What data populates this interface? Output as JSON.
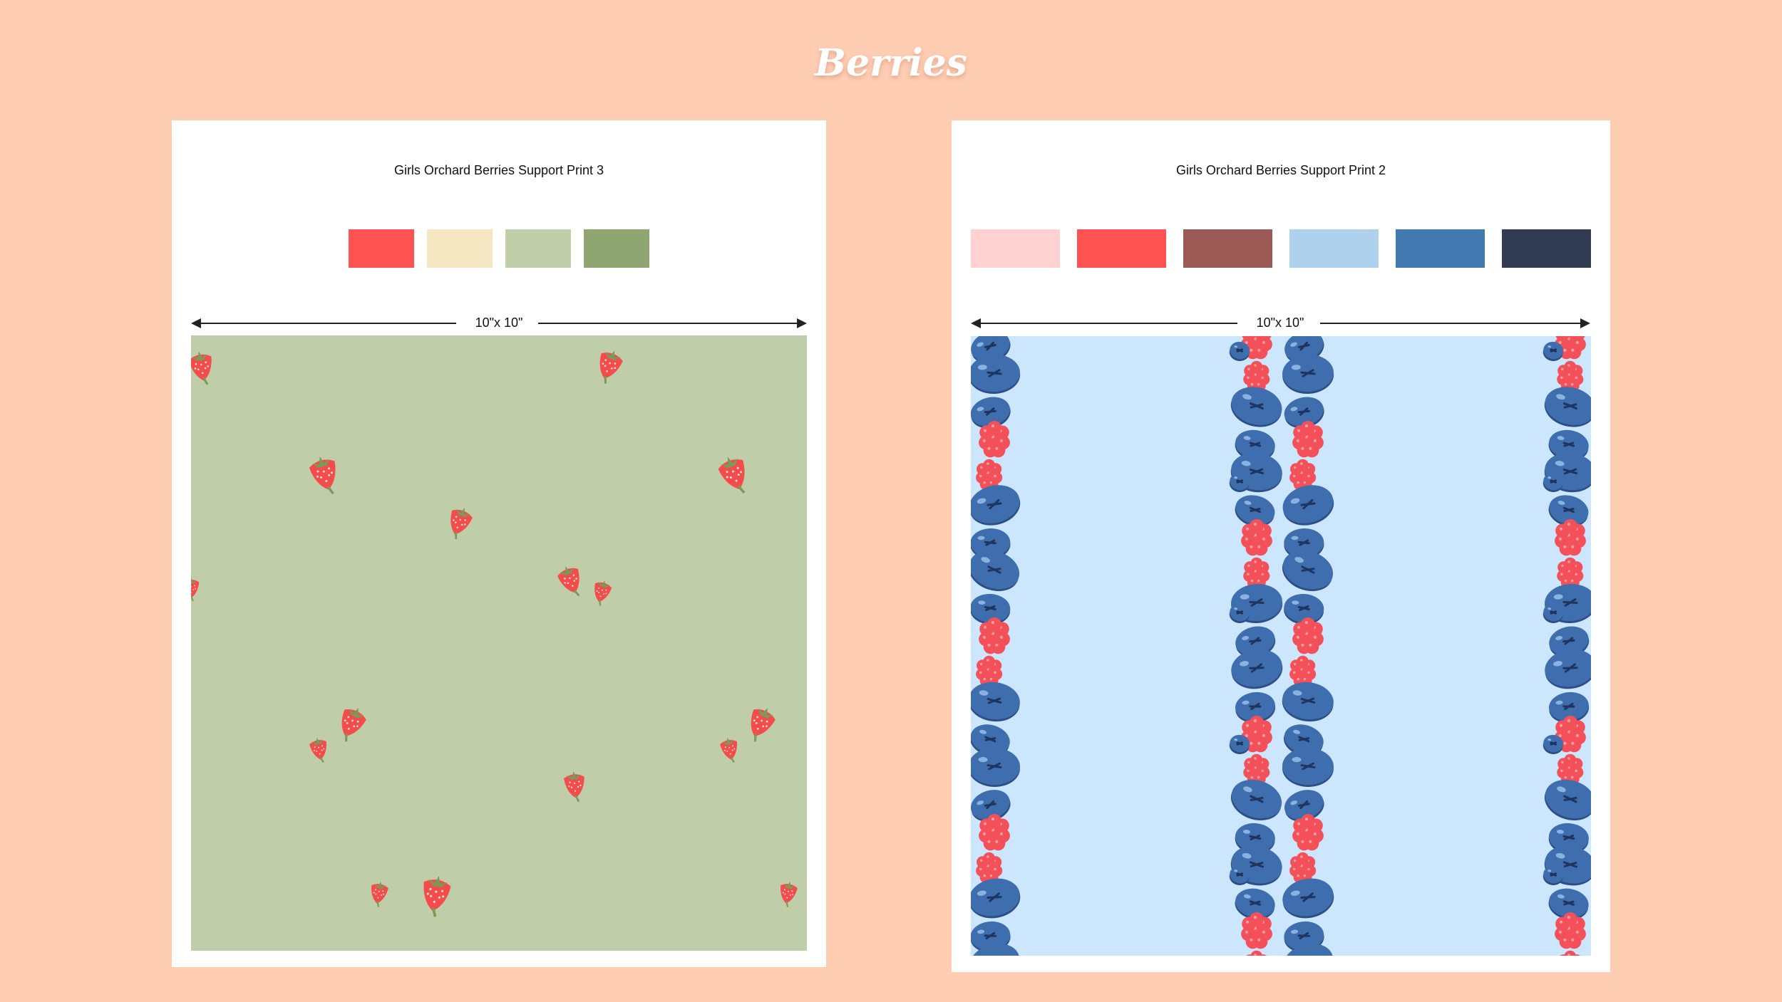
{
  "page": {
    "title": "Berries"
  },
  "cards": [
    {
      "title": "Girls Orchard Berries Support Print 3",
      "swatches": [
        "#FF5252",
        "#F6E7C3",
        "#C0CFA9",
        "#8FA672"
      ],
      "dimension_label": "10\"x 10\"",
      "pattern": {
        "name": "strawberry-pattern",
        "background": "#BFCEA8",
        "motif_color": "#F44B4B",
        "leaf_color": "#7C9A57"
      }
    },
    {
      "title": "Girls Orchard Berries Support Print 2",
      "swatches": [
        "#FFD1D1",
        "#FF5252",
        "#9B5A56",
        "#AED1EE",
        "#4179B0",
        "#313B52"
      ],
      "dimension_label": "10\"x 10\"",
      "pattern": {
        "name": "blueberry-raspberry-pattern",
        "background": "#CCE6FD",
        "blueberry_color": "#3F6EAE",
        "raspberry_color": "#F4505A"
      }
    }
  ]
}
